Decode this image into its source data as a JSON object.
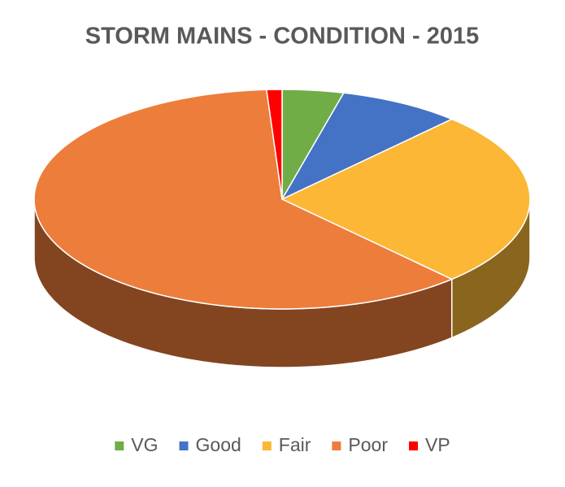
{
  "chart_data": {
    "type": "pie3d",
    "title": "STORM MAINS - CONDITION - 2015",
    "categories": [
      "VG",
      "Good",
      "Fair",
      "Poor",
      "VP"
    ],
    "values": [
      4,
      8,
      26,
      61,
      1
    ],
    "colors": [
      "#70ad47",
      "#4472c4",
      "#fbb735",
      "#ed7d3b",
      "#ff0000"
    ],
    "legend": "bottom"
  }
}
